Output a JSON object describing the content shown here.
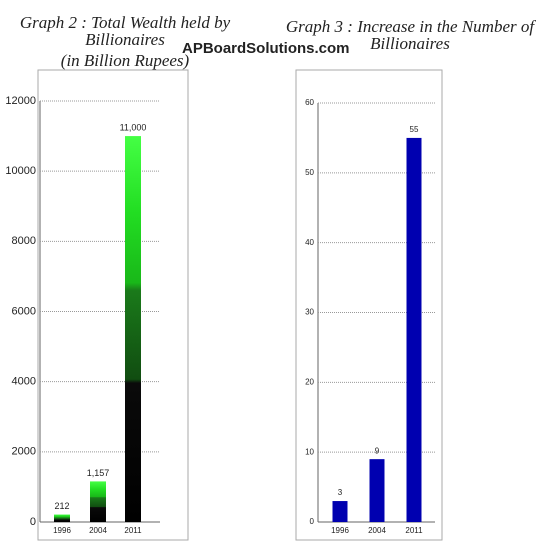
{
  "watermark": "APBoardSolutions.com",
  "chart_data": [
    {
      "type": "bar",
      "title": "Graph 2 : Total Wealth held by Billionaires",
      "subtitle": "(in Billion Rupees)",
      "categories": [
        "1996",
        "2004",
        "2011"
      ],
      "values": [
        212,
        1157,
        11000
      ],
      "value_labels": [
        "212",
        "1,157",
        "11,000"
      ],
      "ylim": [
        0,
        12000
      ],
      "yticks": [
        0,
        2000,
        4000,
        6000,
        8000,
        10000,
        12000
      ],
      "grid": true
    },
    {
      "type": "bar",
      "title": "Graph 3 : Increase in the Number of Billionaires",
      "categories": [
        "1996",
        "2004",
        "2011"
      ],
      "values": [
        3,
        9,
        55
      ],
      "value_labels": [
        "3",
        "9",
        "55"
      ],
      "color": "#0000b0",
      "ylim": [
        0,
        60
      ],
      "yticks": [
        0,
        10,
        20,
        30,
        40,
        50,
        60
      ],
      "grid": true
    }
  ]
}
